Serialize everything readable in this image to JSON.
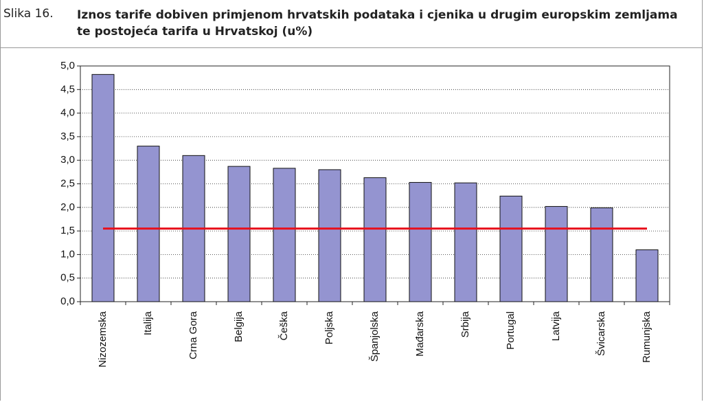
{
  "figure_label": "Slika 16.",
  "chart_data": {
    "type": "bar",
    "title": "Iznos tarife dobiven primjenom hrvatskih podataka i cjenika u drugim europskim zemljama te postojeća tarifa u Hrvatskoj (u%)",
    "categories": [
      "Nizozemska",
      "Italija",
      "Crna Gora",
      "Belgija",
      "Češka",
      "Poljska",
      "Španjolska",
      "Mađarska",
      "Srbija",
      "Portugal",
      "Latvija",
      "Švicarska",
      "Rumunjska"
    ],
    "values": [
      4.82,
      3.3,
      3.1,
      2.87,
      2.83,
      2.8,
      2.63,
      2.53,
      2.52,
      2.24,
      2.02,
      1.99,
      1.1
    ],
    "color": "#9494d0",
    "reference_line": {
      "value": 1.55,
      "color": "#e8101c"
    },
    "ylim": [
      0,
      5
    ],
    "yticks": [
      {
        "value": 0,
        "label": "0,0"
      },
      {
        "value": 0.5,
        "label": "0,5"
      },
      {
        "value": 1,
        "label": "1,0"
      },
      {
        "value": 1.5,
        "label": "1,5"
      },
      {
        "value": 2,
        "label": "2,0"
      },
      {
        "value": 2.5,
        "label": "2,5"
      },
      {
        "value": 3,
        "label": "3,0"
      },
      {
        "value": 3.5,
        "label": "3,5"
      },
      {
        "value": 4,
        "label": "4,0"
      },
      {
        "value": 4.5,
        "label": "4,5"
      },
      {
        "value": 5,
        "label": "5,0"
      }
    ],
    "grid": true
  }
}
